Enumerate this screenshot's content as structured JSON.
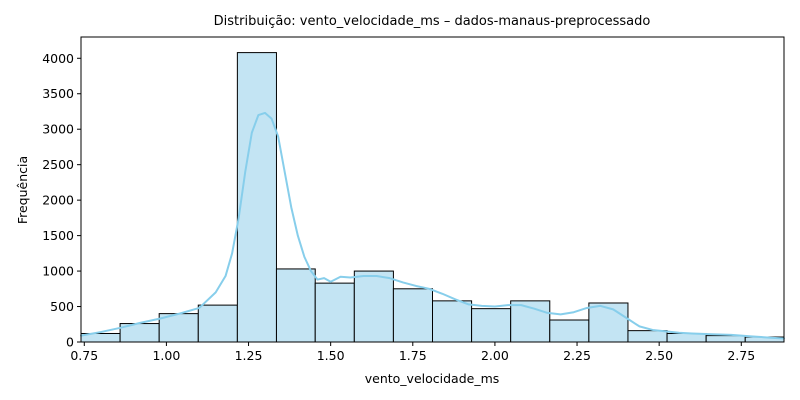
{
  "chart_data": {
    "type": "bar",
    "title": "Distribuição: vento_velocidade_ms – dados-manaus-preprocessado",
    "xlabel": "vento_velocidade_ms",
    "ylabel": "Frequência",
    "xlim": [
      0.74,
      2.88
    ],
    "ylim": [
      0,
      4300
    ],
    "x_ticks": [
      "0.75",
      "1.00",
      "1.25",
      "1.50",
      "1.75",
      "2.00",
      "2.25",
      "2.50",
      "2.75"
    ],
    "y_ticks": [
      "0",
      "500",
      "1000",
      "1500",
      "2000",
      "2500",
      "3000",
      "3500",
      "4000"
    ],
    "bin_edges": [
      0.74,
      0.859,
      0.978,
      1.097,
      1.216,
      1.335,
      1.453,
      1.572,
      1.691,
      1.81,
      1.929,
      2.048,
      2.167,
      2.286,
      2.405,
      2.524,
      2.643,
      2.762,
      2.88
    ],
    "counts": [
      120,
      260,
      400,
      520,
      4080,
      1030,
      830,
      1000,
      750,
      580,
      470,
      580,
      310,
      550,
      160,
      120,
      90,
      70
    ],
    "kde": {
      "x": [
        0.74,
        0.8,
        0.86,
        0.92,
        0.98,
        1.04,
        1.1,
        1.15,
        1.18,
        1.2,
        1.22,
        1.24,
        1.26,
        1.28,
        1.3,
        1.32,
        1.34,
        1.36,
        1.38,
        1.4,
        1.42,
        1.44,
        1.46,
        1.48,
        1.5,
        1.53,
        1.56,
        1.6,
        1.64,
        1.68,
        1.72,
        1.76,
        1.8,
        1.84,
        1.88,
        1.92,
        1.96,
        2.0,
        2.04,
        2.08,
        2.12,
        2.16,
        2.2,
        2.24,
        2.28,
        2.32,
        2.36,
        2.4,
        2.44,
        2.48,
        2.52,
        2.56,
        2.6,
        2.66,
        2.72,
        2.78,
        2.84,
        2.88
      ],
      "y": [
        90,
        140,
        200,
        270,
        330,
        400,
        480,
        700,
        930,
        1250,
        1750,
        2400,
        2950,
        3200,
        3230,
        3150,
        2900,
        2400,
        1900,
        1500,
        1200,
        1000,
        880,
        900,
        850,
        920,
        910,
        930,
        930,
        900,
        840,
        790,
        750,
        680,
        600,
        530,
        510,
        500,
        520,
        520,
        470,
        410,
        390,
        420,
        480,
        510,
        460,
        340,
        220,
        170,
        150,
        130,
        120,
        110,
        100,
        80,
        60,
        50
      ]
    },
    "bar_fill": "#c3e4f3",
    "bar_edge": "#000000",
    "kde_color": "#87ceeb",
    "grid": false,
    "legend": "none"
  }
}
